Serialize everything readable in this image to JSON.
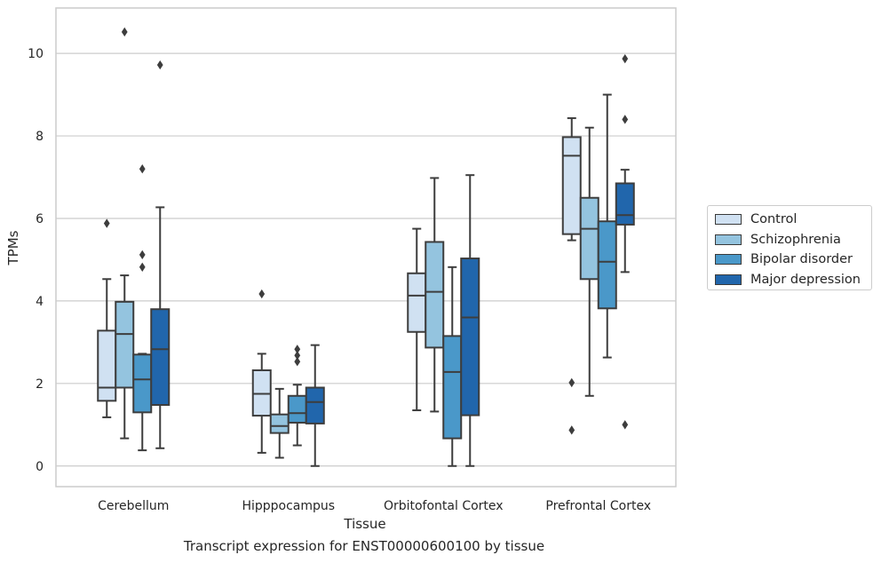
{
  "chart_data": {
    "type": "boxplot",
    "title": "",
    "caption": "Transcript expression for ENST00000600100 by tissue",
    "xlabel": "Tissue",
    "ylabel": "TPMs",
    "ylim": [
      -0.5,
      11.1
    ],
    "yticks": [
      0,
      2,
      4,
      6,
      8,
      10
    ],
    "grid": "horizontal",
    "legend_position": "right",
    "categories": [
      "Cerebellum",
      "Hipppocampus",
      "Orbitofontal Cortex",
      "Prefrontal Cortex"
    ],
    "series": [
      {
        "name": "Control",
        "color": "#d0e1f2",
        "boxes": [
          {
            "whislo": 1.18,
            "q1": 1.58,
            "med": 1.9,
            "q3": 3.28,
            "whishi": 4.53,
            "fliers": [
              5.88
            ]
          },
          {
            "whislo": 0.32,
            "q1": 1.22,
            "med": 1.75,
            "q3": 2.32,
            "whishi": 2.72,
            "fliers": [
              4.17
            ]
          },
          {
            "whislo": 1.35,
            "q1": 3.25,
            "med": 4.13,
            "q3": 4.67,
            "whishi": 5.75,
            "fliers": []
          },
          {
            "whislo": 5.47,
            "q1": 5.62,
            "med": 7.52,
            "q3": 7.97,
            "whishi": 8.43,
            "fliers": [
              2.02,
              0.87
            ]
          }
        ]
      },
      {
        "name": "Schizophrenia",
        "color": "#94c4df",
        "boxes": [
          {
            "whislo": 0.67,
            "q1": 1.9,
            "med": 3.2,
            "q3": 3.98,
            "whishi": 4.62,
            "fliers": [
              10.52
            ]
          },
          {
            "whislo": 0.2,
            "q1": 0.8,
            "med": 0.97,
            "q3": 1.25,
            "whishi": 1.87,
            "fliers": []
          },
          {
            "whislo": 1.32,
            "q1": 2.87,
            "med": 4.22,
            "q3": 5.43,
            "whishi": 6.98,
            "fliers": []
          },
          {
            "whislo": 1.7,
            "q1": 4.53,
            "med": 5.75,
            "q3": 6.5,
            "whishi": 8.2,
            "fliers": []
          }
        ]
      },
      {
        "name": "Bipolar disorder",
        "color": "#4a98c9",
        "boxes": [
          {
            "whislo": 0.38,
            "q1": 1.3,
            "med": 2.1,
            "q3": 2.7,
            "whishi": 2.72,
            "fliers": [
              7.2,
              5.12,
              4.82
            ]
          },
          {
            "whislo": 0.5,
            "q1": 1.05,
            "med": 1.28,
            "q3": 1.7,
            "whishi": 1.97,
            "fliers": [
              2.53,
              2.68,
              2.83
            ]
          },
          {
            "whislo": 0.0,
            "q1": 0.67,
            "med": 2.28,
            "q3": 3.15,
            "whishi": 4.82,
            "fliers": []
          },
          {
            "whislo": 2.63,
            "q1": 3.82,
            "med": 4.95,
            "q3": 5.93,
            "whishi": 9.0,
            "fliers": []
          }
        ]
      },
      {
        "name": "Major depression",
        "color": "#2166ac",
        "boxes": [
          {
            "whislo": 0.43,
            "q1": 1.48,
            "med": 2.83,
            "q3": 3.8,
            "whishi": 6.27,
            "fliers": [
              9.72
            ]
          },
          {
            "whislo": 0.0,
            "q1": 1.03,
            "med": 1.55,
            "q3": 1.9,
            "whishi": 2.93,
            "fliers": []
          },
          {
            "whislo": 0.0,
            "q1": 1.23,
            "med": 3.6,
            "q3": 5.03,
            "whishi": 7.05,
            "fliers": []
          },
          {
            "whislo": 4.7,
            "q1": 5.85,
            "med": 6.08,
            "q3": 6.85,
            "whishi": 7.18,
            "fliers": [
              9.87,
              8.4,
              1.0
            ]
          }
        ]
      }
    ]
  }
}
